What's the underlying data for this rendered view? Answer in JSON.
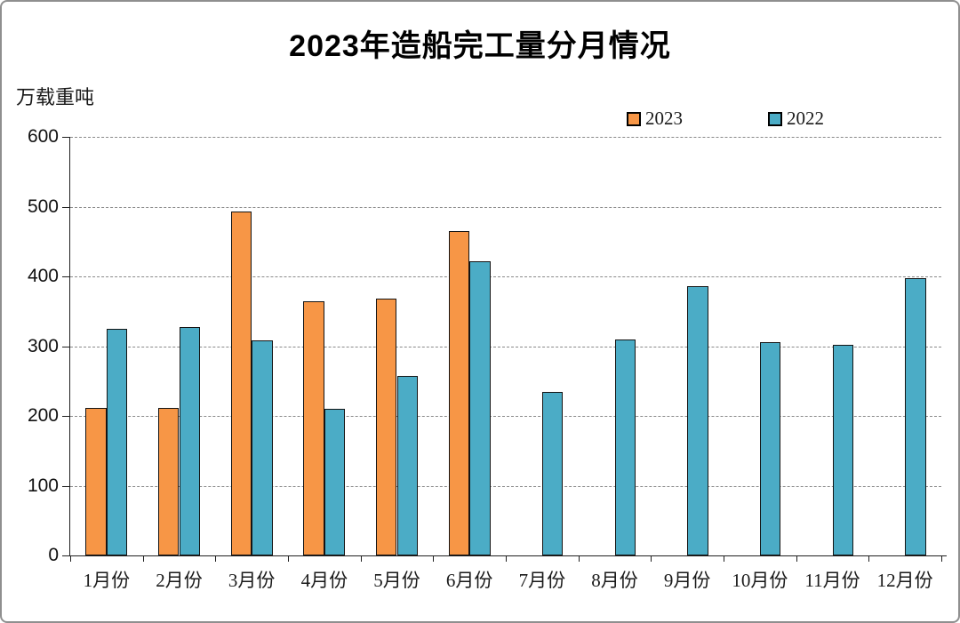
{
  "title": "2023年造船完工量分月情况",
  "y_unit_label": "万载重吨",
  "colors": {
    "series_2023": "#F79646",
    "series_2022": "#4BACC6",
    "bar_border": "#141414",
    "gridline": "#8a8a8a",
    "axis": "#1f1f1f"
  },
  "chart_data": {
    "type": "bar",
    "title": "2023年造船完工量分月情况",
    "ylabel": "万载重吨",
    "xlabel": "",
    "categories": [
      "1月份",
      "2月份",
      "3月份",
      "4月份",
      "5月份",
      "6月份",
      "7月份",
      "8月份",
      "9月份",
      "10月份",
      "11月份",
      "12月份"
    ],
    "series": [
      {
        "name": "2023",
        "color": "#F79646",
        "values": [
          211,
          211,
          493,
          364,
          368,
          465,
          null,
          null,
          null,
          null,
          null,
          null
        ]
      },
      {
        "name": "2022",
        "color": "#4BACC6",
        "values": [
          325,
          327,
          308,
          210,
          257,
          422,
          234,
          309,
          386,
          306,
          302,
          397
        ]
      }
    ],
    "ylim": [
      0,
      600
    ],
    "yticks": [
      0,
      100,
      200,
      300,
      400,
      500,
      600
    ],
    "grid": "horizontal-dashed",
    "legend_position": "top-right-inside"
  }
}
